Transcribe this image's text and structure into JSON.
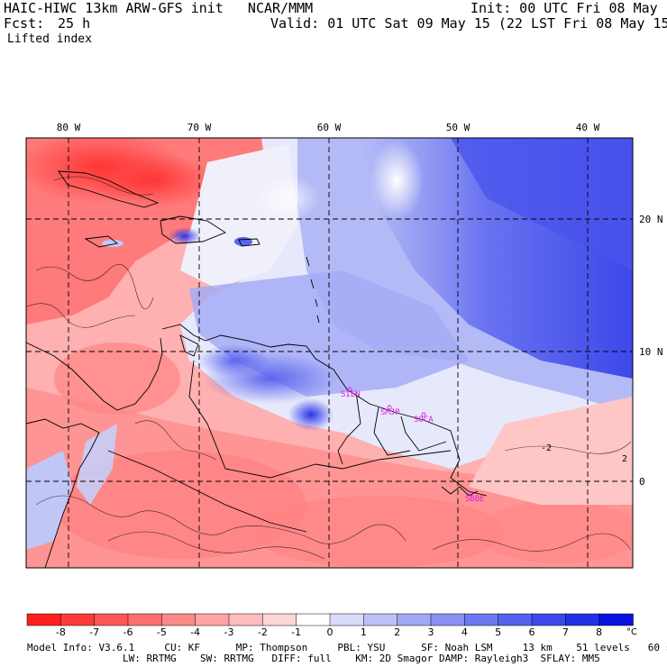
{
  "header": {
    "model_line": "HAIC-HIWC 13km ARW-GFS init   NCAR/MMM",
    "init_line": "Init: 00 UTC Fri 08 May 15",
    "fcst_label": "Fcst:",
    "fcst_value": "25 h",
    "valid_line": "Valid: 01 UTC Sat 09 May 15 (22 LST Fri 08 May 15)",
    "field_name": "Lifted index"
  },
  "map": {
    "lon_labels": [
      "80 W",
      "70 W",
      "60 W",
      "50 W",
      "40 W"
    ],
    "lat_labels": [
      "20 N",
      "10 N",
      "0"
    ],
    "stations": [
      "SIEN",
      "SMJP",
      "SOCA",
      "SBBE"
    ],
    "contour_labels": [
      "2",
      "-2"
    ]
  },
  "colorbar": {
    "ticks": [
      "-8",
      "-7",
      "-6",
      "-5",
      "-4",
      "-3",
      "-2",
      "-1",
      "0",
      "1",
      "2",
      "3",
      "4",
      "5",
      "6",
      "7",
      "8"
    ],
    "unit": "°C",
    "colors": [
      "#ff1f1f",
      "#ff3a3a",
      "#ff5555",
      "#ff6e6e",
      "#ff8888",
      "#ffa3a3",
      "#ffbcbc",
      "#ffd6d6",
      "#ffffff",
      "#d8dcfa",
      "#bcc2f8",
      "#a0a8f5",
      "#8890f4",
      "#6e78f2",
      "#5660ef",
      "#3c48ea",
      "#2230e6",
      "#0a12e0"
    ]
  },
  "model_info": {
    "line1": "Model Info: V3.6.1     CU: KF      MP: Thompson     PBL: YSU      SF: Noah LSM     13 km    51 levels   60 sec",
    "line2": "                LW: RRTMG    SW: RRTMG   DIFF: full    KM: 2D Smagor DAMP: Rayleigh3  SFLAY: MM5"
  }
}
